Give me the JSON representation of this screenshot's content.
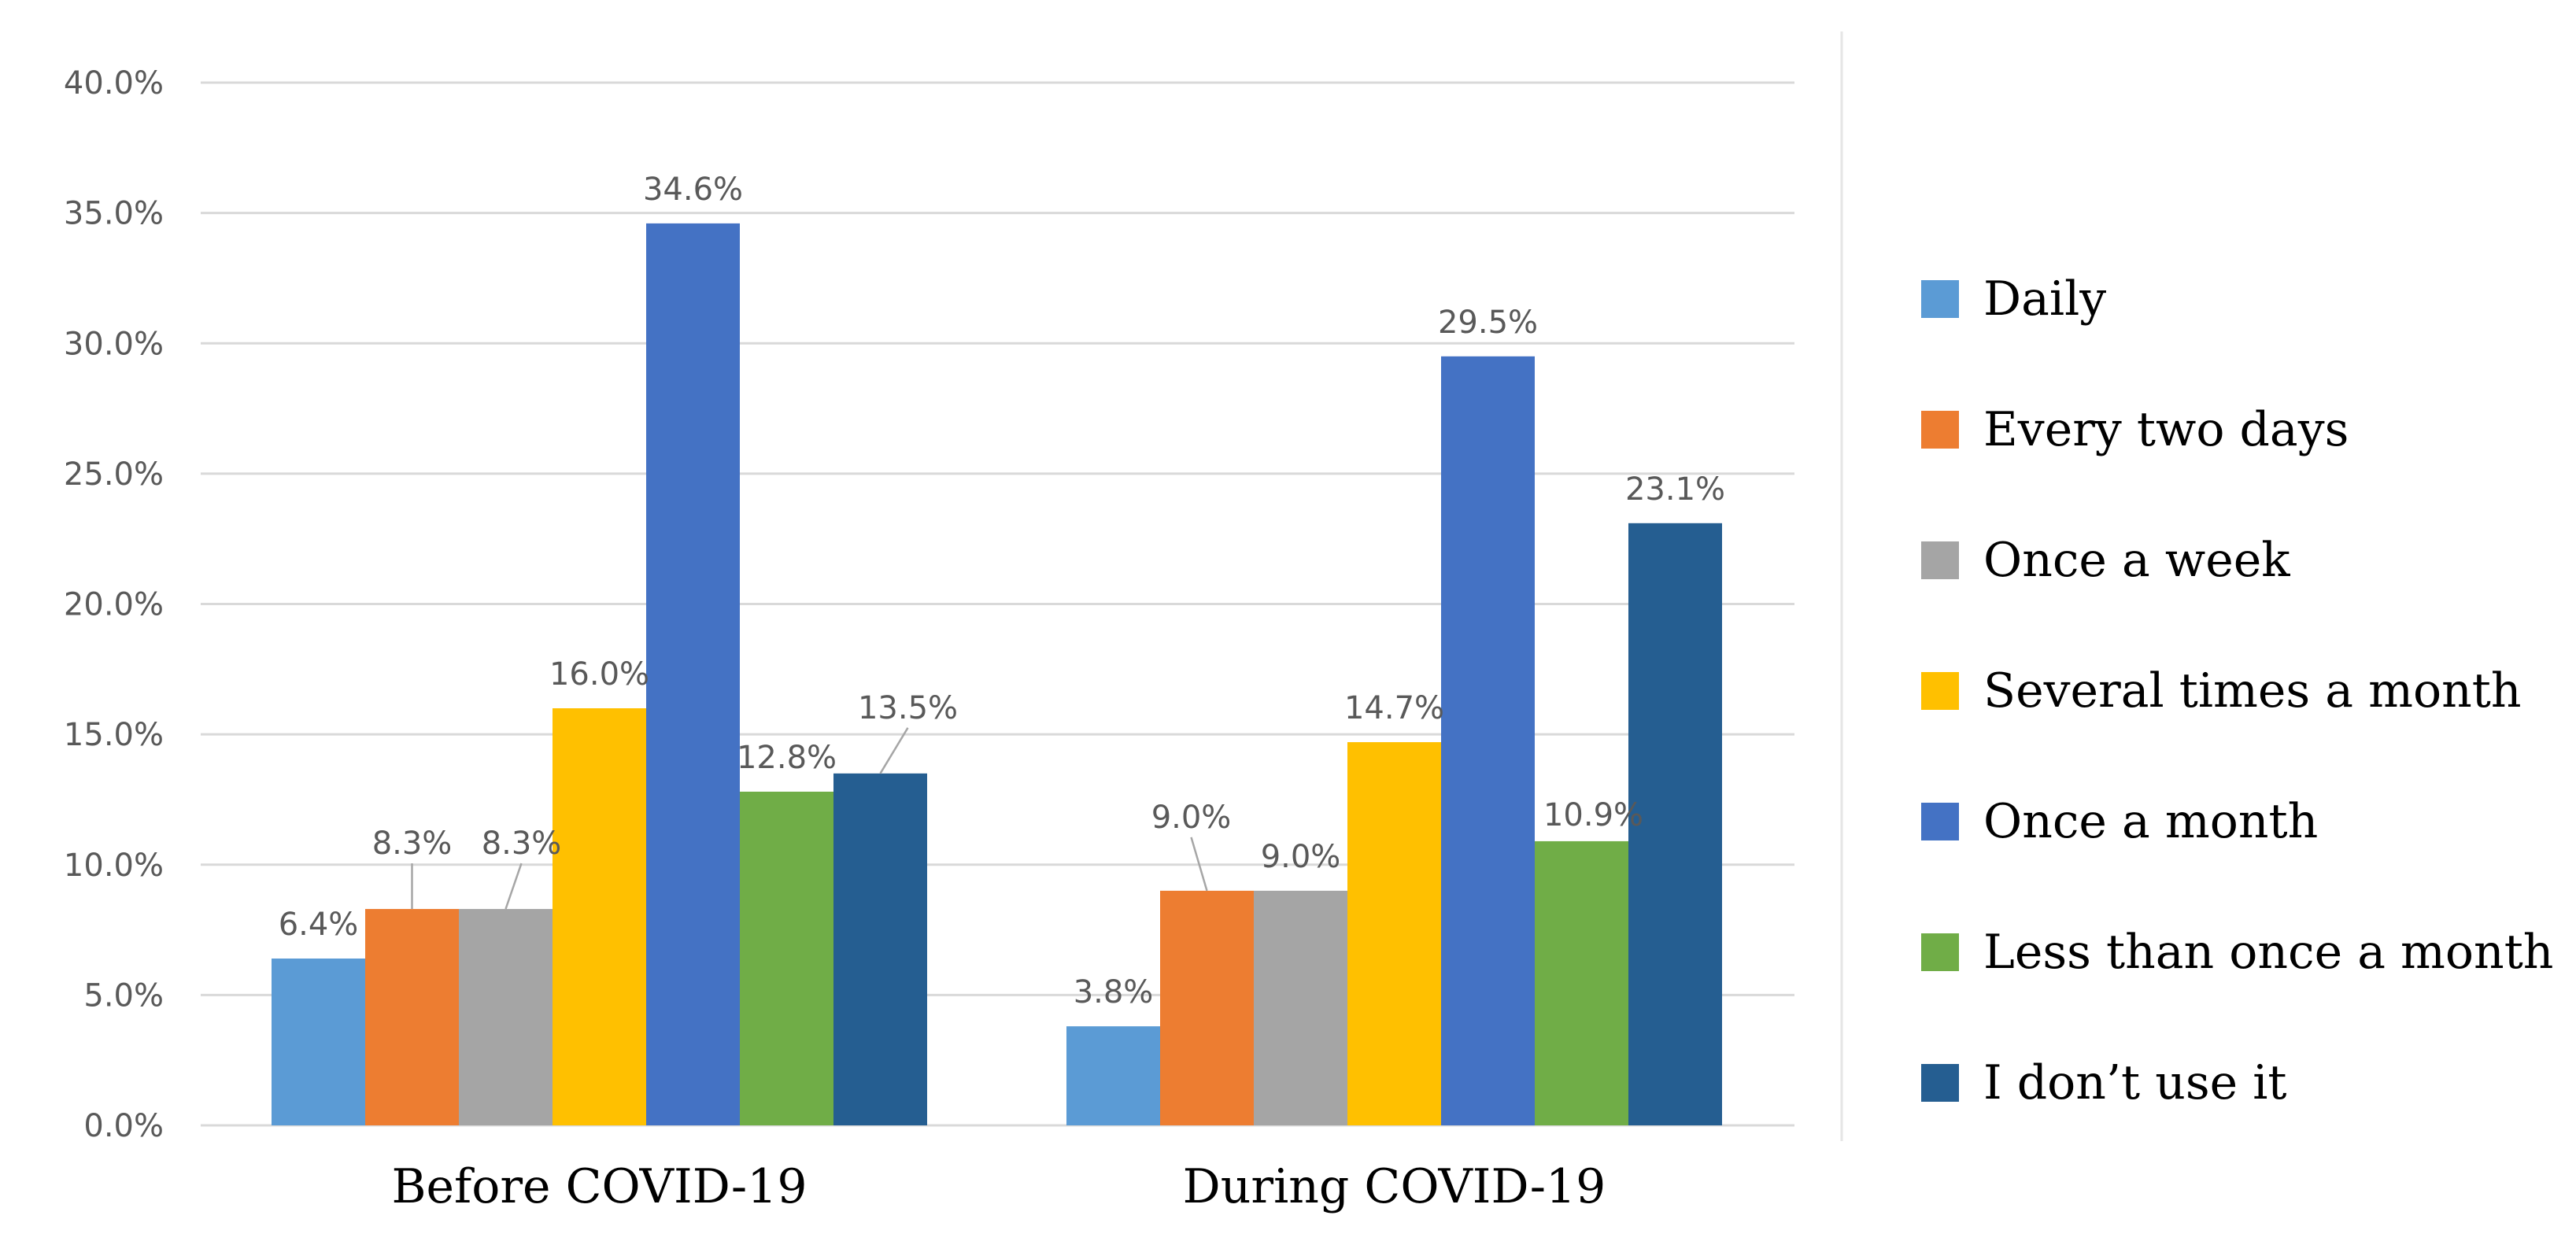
{
  "chart_data": {
    "type": "bar",
    "title": "",
    "xlabel": "",
    "ylabel": "",
    "ylim": [
      0,
      40
    ],
    "yticks": [
      "0.0%",
      "5.0%",
      "10.0%",
      "15.0%",
      "20.0%",
      "25.0%",
      "30.0%",
      "35.0%",
      "40.0%"
    ],
    "grid": true,
    "legend_position": "right",
    "categories": [
      "Before COVID-19",
      "During COVID-19"
    ],
    "series": [
      {
        "name": "Daily",
        "color": "#5B9BD5",
        "values": [
          6.4,
          3.8
        ],
        "labels": [
          "6.4%",
          "3.8%"
        ]
      },
      {
        "name": "Every two days",
        "color": "#ED7D31",
        "values": [
          8.3,
          9.0
        ],
        "labels": [
          "8.3%",
          "9.0%"
        ]
      },
      {
        "name": "Once a week",
        "color": "#A5A5A5",
        "values": [
          8.3,
          9.0
        ],
        "labels": [
          "8.3%",
          "9.0%"
        ]
      },
      {
        "name": "Several times a month",
        "color": "#FFC000",
        "values": [
          16.0,
          14.7
        ],
        "labels": [
          "16.0%",
          "14.7%"
        ]
      },
      {
        "name": "Once a month",
        "color": "#4472C4",
        "values": [
          34.6,
          29.5
        ],
        "labels": [
          "34.6%",
          "29.5%"
        ]
      },
      {
        "name": "Less than once a month",
        "color": "#70AD47",
        "values": [
          12.8,
          10.9
        ],
        "labels": [
          "12.8%",
          "10.9%"
        ]
      },
      {
        "name": "I don’t use it",
        "color": "#255E91",
        "values": [
          13.5,
          23.1
        ],
        "labels": [
          "13.5%",
          "23.1%"
        ]
      }
    ]
  }
}
